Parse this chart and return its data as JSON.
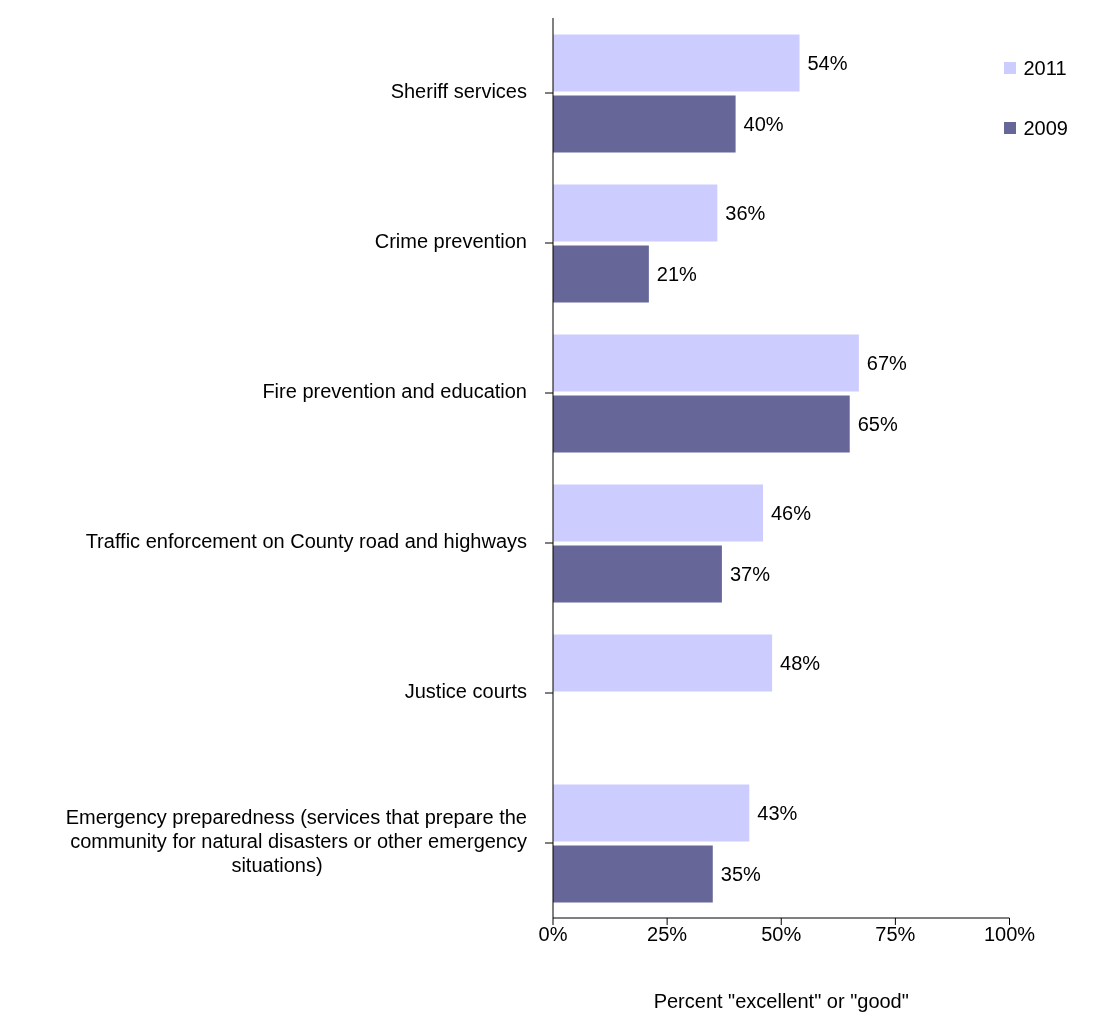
{
  "chart_data": {
    "type": "bar",
    "orientation": "horizontal",
    "xlabel": "Percent \"excellent\" or \"good\"",
    "categories": [
      "Sheriff services",
      "Crime prevention",
      "Fire prevention and education",
      "Traffic enforcement on County road and highways",
      "Justice courts",
      "Emergency preparedness (services that prepare the community for natural disasters or other emergency situations)"
    ],
    "series": [
      {
        "name": "2011",
        "color": "#ccccff",
        "values": [
          54,
          36,
          67,
          46,
          48,
          43
        ],
        "value_labels": [
          "54%",
          "36%",
          "67%",
          "46%",
          "48%",
          "43%"
        ]
      },
      {
        "name": "2009",
        "color": "#666699",
        "values": [
          40,
          21,
          65,
          37,
          null,
          35
        ],
        "value_labels": [
          "40%",
          "21%",
          "65%",
          "37%",
          null,
          "35%"
        ]
      }
    ],
    "xlim": [
      0,
      100
    ],
    "xticks": [
      {
        "value": 0,
        "label": "0%"
      },
      {
        "value": 25,
        "label": "25%"
      },
      {
        "value": 50,
        "label": "50%"
      },
      {
        "value": 75,
        "label": "75%"
      },
      {
        "value": 100,
        "label": "100%"
      }
    ],
    "grid": false,
    "legend": "top right"
  }
}
